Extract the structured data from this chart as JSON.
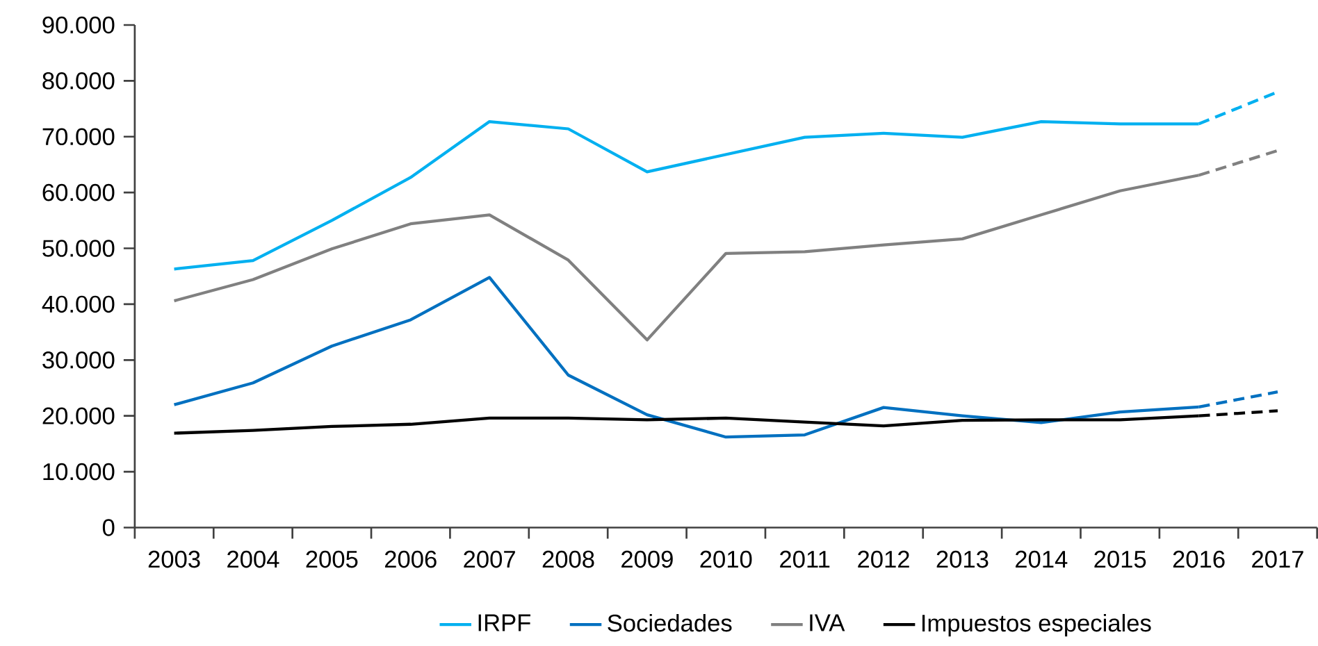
{
  "chart_data": {
    "type": "line",
    "categories": [
      "2003",
      "2004",
      "2005",
      "2006",
      "2007",
      "2008",
      "2009",
      "2010",
      "2011",
      "2012",
      "2013",
      "2014",
      "2015",
      "2016",
      "2017"
    ],
    "ylim": [
      0,
      90000
    ],
    "yticks": [
      {
        "value": 0,
        "label": "0"
      },
      {
        "value": 10000,
        "label": "10.000"
      },
      {
        "value": 20000,
        "label": "20.000"
      },
      {
        "value": 30000,
        "label": "30.000"
      },
      {
        "value": 40000,
        "label": "40.000"
      },
      {
        "value": 50000,
        "label": "50.000"
      },
      {
        "value": 60000,
        "label": "60.000"
      },
      {
        "value": 70000,
        "label": "70.000"
      },
      {
        "value": 80000,
        "label": "80.000"
      },
      {
        "value": 90000,
        "label": "90.000"
      }
    ],
    "grid": false,
    "legend": "bottom",
    "series": [
      {
        "name": "IRPF",
        "color": "#00b0f0",
        "line_style": "solid",
        "values": [
          46300,
          47800,
          55000,
          62700,
          72700,
          71400,
          63700,
          66800,
          69900,
          70600,
          69900,
          72700,
          72300,
          72300,
          null
        ]
      },
      {
        "color": "#00b0f0",
        "line_style": "dashed",
        "values": [
          null,
          null,
          null,
          null,
          null,
          null,
          null,
          null,
          null,
          null,
          null,
          null,
          null,
          72300,
          78000
        ]
      },
      {
        "name": "Sociedades",
        "color": "#0070c0",
        "line_style": "solid",
        "values": [
          22000,
          25900,
          32500,
          37200,
          44800,
          27300,
          20200,
          16200,
          16600,
          21500,
          20000,
          18800,
          20700,
          21600,
          null
        ]
      },
      {
        "color": "#0070c0",
        "line_style": "dashed",
        "values": [
          null,
          null,
          null,
          null,
          null,
          null,
          null,
          null,
          null,
          null,
          null,
          null,
          null,
          21600,
          24300
        ]
      },
      {
        "name": "IVA",
        "color": "#808080",
        "line_style": "solid",
        "values": [
          40600,
          44400,
          49900,
          54400,
          56000,
          47900,
          33600,
          49100,
          49400,
          50600,
          51700,
          56000,
          60300,
          63100,
          null
        ]
      },
      {
        "color": "#808080",
        "line_style": "dashed",
        "values": [
          null,
          null,
          null,
          null,
          null,
          null,
          null,
          null,
          null,
          null,
          null,
          null,
          null,
          63100,
          67500
        ]
      },
      {
        "name": "Impuestos especiales",
        "color": "#000000",
        "line_style": "solid",
        "values": [
          16900,
          17400,
          18100,
          18500,
          19600,
          19600,
          19300,
          19600,
          18900,
          18200,
          19200,
          19300,
          19300,
          20000,
          null
        ]
      },
      {
        "color": "#000000",
        "line_style": "dashed",
        "values": [
          null,
          null,
          null,
          null,
          null,
          null,
          null,
          null,
          null,
          null,
          null,
          null,
          null,
          20000,
          20900
        ]
      }
    ]
  }
}
